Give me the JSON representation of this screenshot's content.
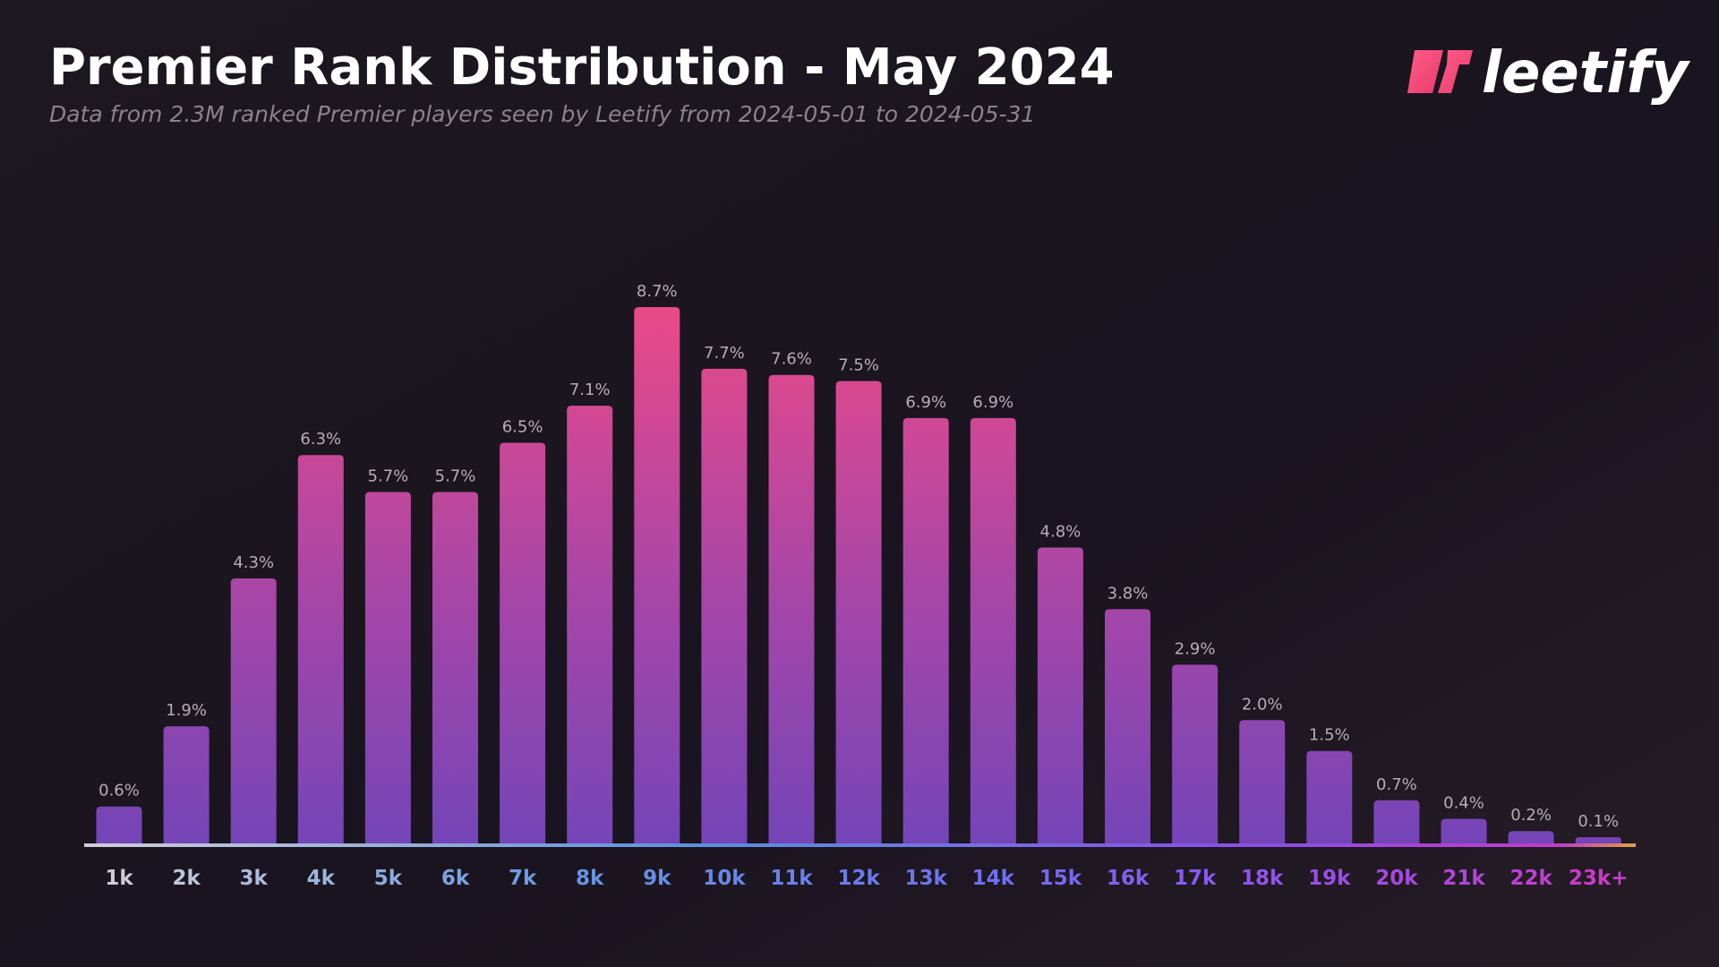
{
  "brand": "leetify",
  "chart_data": {
    "type": "bar",
    "title": "Premier Rank Distribution - May 2024",
    "subtitle": "Data from 2.3M ranked Premier players seen by Leetify from 2024-05-01 to 2024-05-31",
    "categories": [
      "1k",
      "2k",
      "3k",
      "4k",
      "5k",
      "6k",
      "7k",
      "8k",
      "9k",
      "10k",
      "11k",
      "12k",
      "13k",
      "14k",
      "15k",
      "16k",
      "17k",
      "18k",
      "19k",
      "20k",
      "21k",
      "22k",
      "23k+"
    ],
    "values": [
      0.6,
      1.9,
      4.3,
      6.3,
      5.7,
      5.7,
      6.5,
      7.1,
      8.7,
      7.7,
      7.6,
      7.5,
      6.9,
      6.9,
      4.8,
      3.8,
      2.9,
      2.0,
      1.5,
      0.7,
      0.4,
      0.2,
      0.1
    ],
    "value_labels": [
      "0.6%",
      "1.9%",
      "4.3%",
      "6.3%",
      "5.7%",
      "5.7%",
      "6.5%",
      "7.1%",
      "8.7%",
      "7.7%",
      "7.6%",
      "7.5%",
      "6.9%",
      "6.9%",
      "4.8%",
      "3.8%",
      "2.9%",
      "2.0%",
      "1.5%",
      "0.7%",
      "0.4%",
      "0.2%",
      "0.1%"
    ]
  }
}
